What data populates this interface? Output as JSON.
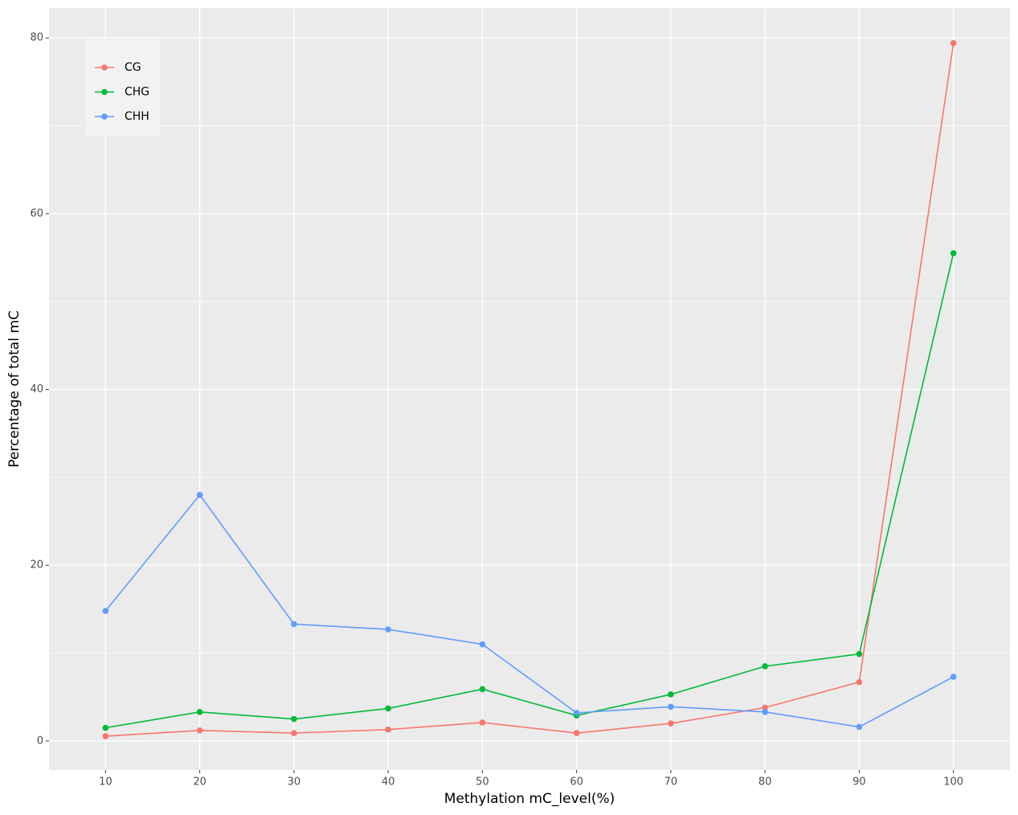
{
  "chart_data": {
    "type": "line",
    "x_label": "Methylation mC_level(%)",
    "y_label": "Percentage of total mC",
    "x": [
      10,
      20,
      30,
      40,
      50,
      60,
      70,
      80,
      90,
      100
    ],
    "series": [
      {
        "name": "CG",
        "color": "#F8766D",
        "values": [
          0.55,
          1.2,
          0.9,
          1.3,
          2.1,
          0.9,
          2.0,
          3.8,
          6.7,
          79.4
        ]
      },
      {
        "name": "CHG",
        "color": "#00BA38",
        "values": [
          1.5,
          3.3,
          2.5,
          3.7,
          5.9,
          2.9,
          5.3,
          8.5,
          9.9,
          55.5
        ]
      },
      {
        "name": "CHH",
        "color": "#619CFF",
        "values": [
          14.8,
          28.0,
          13.3,
          12.7,
          11.0,
          3.2,
          3.9,
          3.3,
          1.6,
          7.3
        ]
      }
    ],
    "xlim": [
      4,
      106
    ],
    "ylim": [
      -3.3,
      83.4
    ],
    "xticks": [
      10,
      20,
      30,
      40,
      50,
      60,
      70,
      80,
      90,
      100
    ],
    "yticks": [
      0,
      20,
      40,
      60,
      80
    ],
    "grid": true,
    "legend_position": "top-left"
  }
}
